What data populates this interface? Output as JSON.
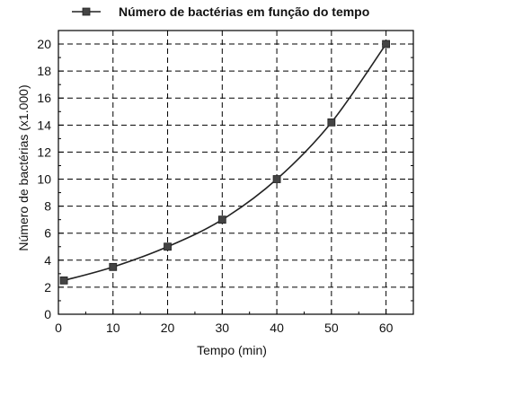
{
  "chart_data": {
    "type": "line",
    "title": "",
    "legend": [
      "Número de bactérias em função do tempo"
    ],
    "legend_position": "top",
    "xlabel": "Tempo (min)",
    "ylabel": "Número de bactérias  (x1.000)",
    "xlim": [
      0,
      65
    ],
    "ylim": [
      0,
      21
    ],
    "x_ticks": [
      "0",
      "10",
      "20",
      "30",
      "40",
      "50",
      "60"
    ],
    "y_ticks": [
      "0",
      "2",
      "4",
      "6",
      "8",
      "10",
      "12",
      "14",
      "16",
      "18",
      "20"
    ],
    "grid": true,
    "series": [
      {
        "name": "Número de bactérias em função do tempo",
        "x": [
          1,
          10,
          20,
          30,
          40,
          50,
          60
        ],
        "y": [
          2.5,
          3.5,
          5,
          7,
          10,
          14.2,
          20
        ]
      }
    ]
  }
}
